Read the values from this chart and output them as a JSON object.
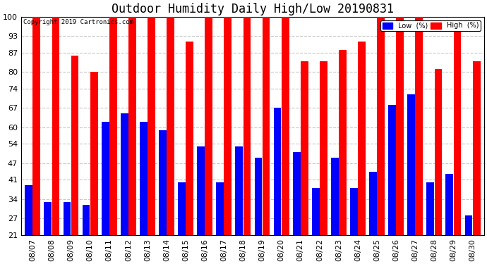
{
  "title": "Outdoor Humidity Daily High/Low 20190831",
  "copyright": "Copyright 2019 Cartronics.com",
  "dates": [
    "08/07",
    "08/08",
    "08/09",
    "08/10",
    "08/11",
    "08/12",
    "08/13",
    "08/14",
    "08/15",
    "08/16",
    "08/17",
    "08/18",
    "08/19",
    "08/20",
    "08/21",
    "08/22",
    "08/23",
    "08/24",
    "08/25",
    "08/26",
    "08/27",
    "08/28",
    "08/29",
    "08/30"
  ],
  "high": [
    100,
    100,
    86,
    80,
    100,
    100,
    100,
    100,
    91,
    100,
    100,
    100,
    100,
    100,
    84,
    84,
    88,
    91,
    100,
    100,
    100,
    81,
    97,
    84
  ],
  "low": [
    39,
    33,
    33,
    32,
    62,
    65,
    62,
    59,
    40,
    53,
    40,
    53,
    49,
    67,
    51,
    38,
    49,
    38,
    44,
    68,
    72,
    40,
    43,
    28
  ],
  "high_color": "#ff0000",
  "low_color": "#0000ff",
  "bg_color": "#ffffff",
  "grid_color": "#c8c8c8",
  "ylim_min": 21,
  "ylim_max": 100,
  "yticks": [
    21,
    27,
    34,
    41,
    47,
    54,
    60,
    67,
    74,
    80,
    87,
    93,
    100
  ],
  "title_fontsize": 12,
  "tick_fontsize": 8,
  "bar_width": 0.4,
  "bar_gap": 0.01
}
